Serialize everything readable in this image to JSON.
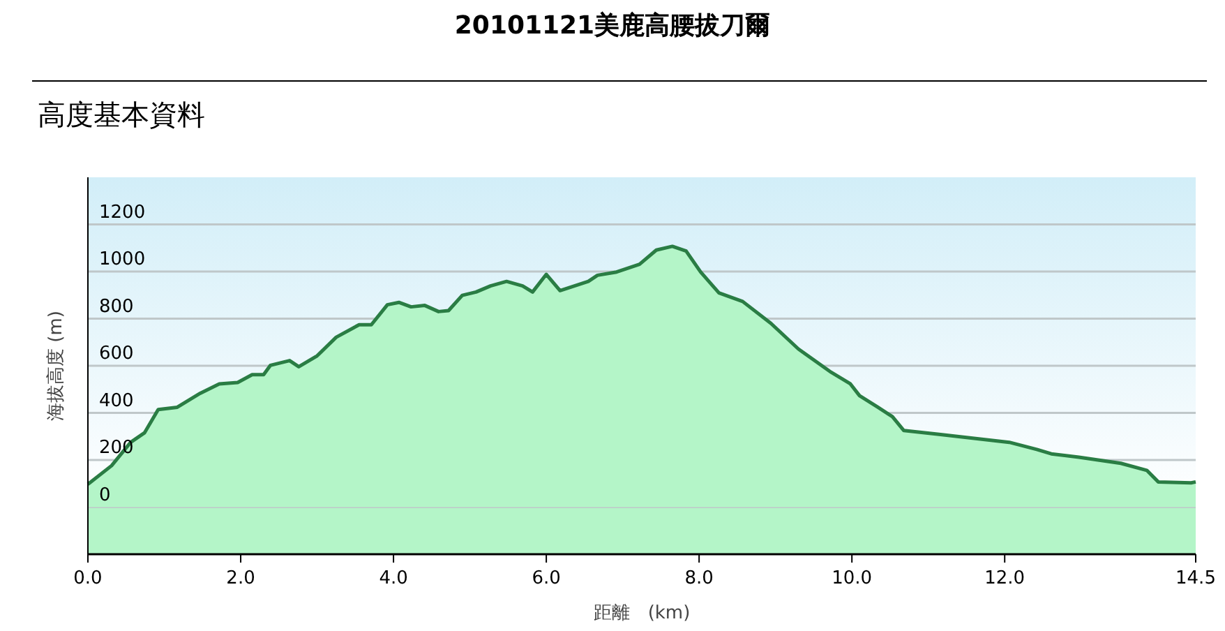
{
  "chart_data": {
    "type": "area",
    "title": "20101121美鹿高腰拔刀爾",
    "subtitle": "高度基本資料",
    "xlabel": "距離　(km)",
    "ylabel": "海拔高度 (m)",
    "xlim": [
      0,
      14.5
    ],
    "xticks": [
      {
        "value": 0,
        "label": "0.0"
      },
      {
        "value": 2,
        "label": "2.0"
      },
      {
        "value": 4,
        "label": "4.0"
      },
      {
        "value": 6,
        "label": "6.0"
      },
      {
        "value": 8,
        "label": "8.0"
      },
      {
        "value": 10,
        "label": "10.0"
      },
      {
        "value": 12,
        "label": "12.0"
      },
      14.5
    ],
    "ylim": [
      -200,
      1400
    ],
    "yticks": [
      0,
      200,
      400,
      600,
      800,
      1000,
      1200
    ],
    "grid": "y",
    "series": [
      {
        "color": "#2a7d44",
        "x": [
          0,
          0.31,
          0.56,
          0.74,
          0.92,
          1.17,
          1.47,
          1.72,
          1.96,
          2.15,
          2.3,
          2.39,
          2.64,
          2.76,
          3.0,
          3.25,
          3.55,
          3.71,
          3.92,
          4.07,
          4.23,
          4.41,
          4.59,
          4.72,
          4.9,
          5.08,
          5.27,
          5.48,
          5.69,
          5.82,
          6.0,
          6.18,
          6.55,
          6.67,
          6.92,
          7.22,
          7.44,
          7.65,
          7.83,
          8.02,
          8.26,
          8.57,
          8.94,
          9.3,
          9.73,
          9.98,
          10.1,
          10.34,
          10.53,
          10.68,
          11.14,
          12.06,
          12.42,
          12.61,
          12.97,
          13.52,
          13.86,
          14.01,
          14.44,
          14.5
        ],
        "values": [
          97,
          176,
          275,
          315,
          414,
          424,
          483,
          523,
          529,
          562,
          562,
          602,
          622,
          596,
          642,
          721,
          774,
          774,
          859,
          869,
          850,
          856,
          830,
          834,
          899,
          913,
          939,
          958,
          939,
          913,
          988,
          919,
          958,
          984,
          998,
          1031,
          1091,
          1107,
          1087,
          998,
          909,
          873,
          780,
          671,
          572,
          523,
          473,
          424,
          384,
          325,
          309,
          275,
          245,
          226,
          212,
          186,
          156,
          107,
          103,
          107
        ]
      }
    ]
  }
}
